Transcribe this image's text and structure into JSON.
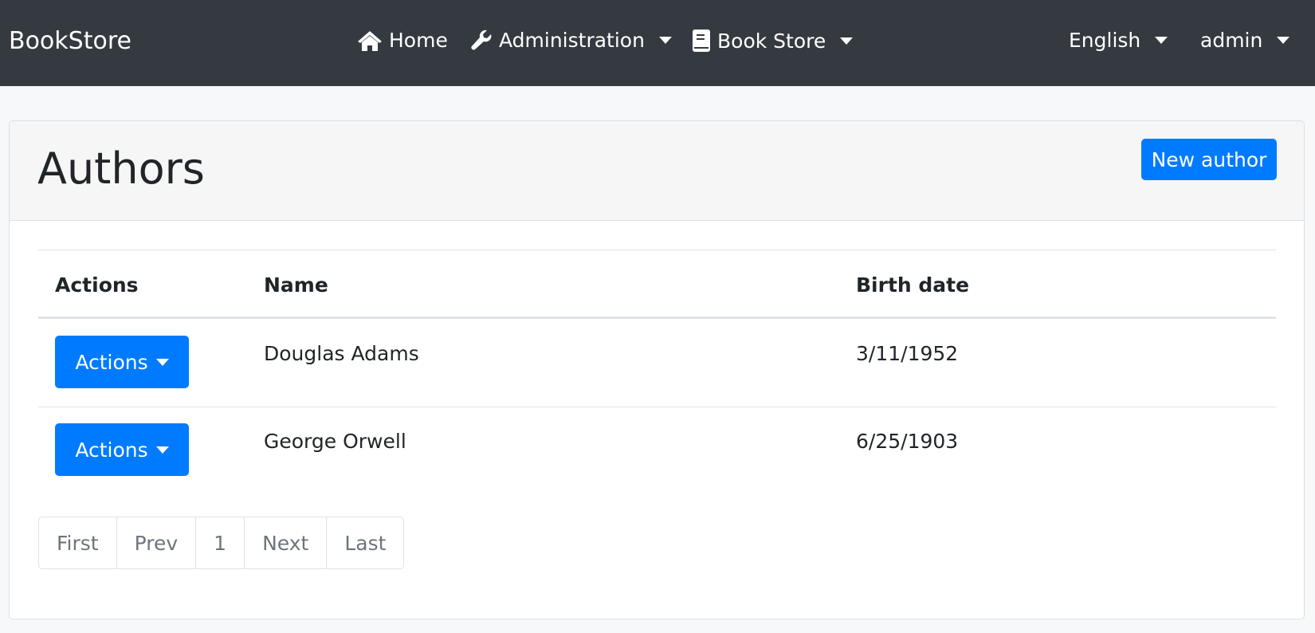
{
  "navbar": {
    "brand": "BookStore",
    "home": "Home",
    "administration": "Administration",
    "book_store": "Book Store",
    "language": "English",
    "user": "admin"
  },
  "page": {
    "title": "Authors",
    "new_button": "New author"
  },
  "table": {
    "headers": [
      "Actions",
      "Name",
      "Birth date"
    ],
    "rows": [
      {
        "action": "Actions",
        "name": "Douglas Adams",
        "birth_date": "3/11/1952"
      },
      {
        "action": "Actions",
        "name": "George Orwell",
        "birth_date": "6/25/1903"
      }
    ]
  },
  "pagination": [
    "First",
    "Prev",
    "1",
    "Next",
    "Last"
  ],
  "colors": {
    "navbar": "#343a40",
    "primary": "#007bff"
  }
}
